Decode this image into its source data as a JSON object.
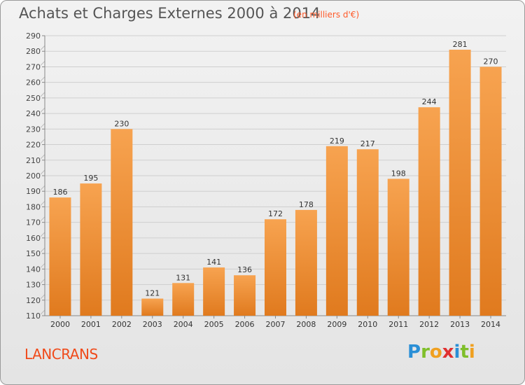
{
  "title": "Achats et Charges Externes 2000 à 2014",
  "subtitle": "(en milliers d'€)",
  "location": "LANCRANS",
  "brand": {
    "letters": [
      {
        "ch": "P",
        "color": "#2a8fd6"
      },
      {
        "ch": "r",
        "color": "#7fbf2a"
      },
      {
        "ch": "o",
        "color": "#f0a020"
      },
      {
        "ch": "x",
        "color": "#e03030"
      },
      {
        "ch": "i",
        "color": "#2a8fd6"
      },
      {
        "ch": "t",
        "color": "#7fbf2a"
      },
      {
        "ch": "i",
        "color": "#f0a020"
      }
    ]
  },
  "colors": {
    "bar_top": "#f7a350",
    "bar_bottom": "#e07a1e",
    "accent": "#f04a1a"
  },
  "chart_data": {
    "type": "bar",
    "categories": [
      "2000",
      "2001",
      "2002",
      "2003",
      "2004",
      "2005",
      "2006",
      "2007",
      "2008",
      "2009",
      "2010",
      "2011",
      "2012",
      "2013",
      "2014"
    ],
    "values": [
      186,
      195,
      230,
      121,
      131,
      141,
      136,
      172,
      178,
      219,
      217,
      198,
      244,
      281,
      270
    ],
    "ylim": [
      110,
      290
    ],
    "yticks": [
      110,
      120,
      130,
      140,
      150,
      160,
      170,
      180,
      190,
      200,
      210,
      220,
      230,
      240,
      250,
      260,
      270,
      280,
      290
    ],
    "grid": true,
    "data_labels": true
  }
}
